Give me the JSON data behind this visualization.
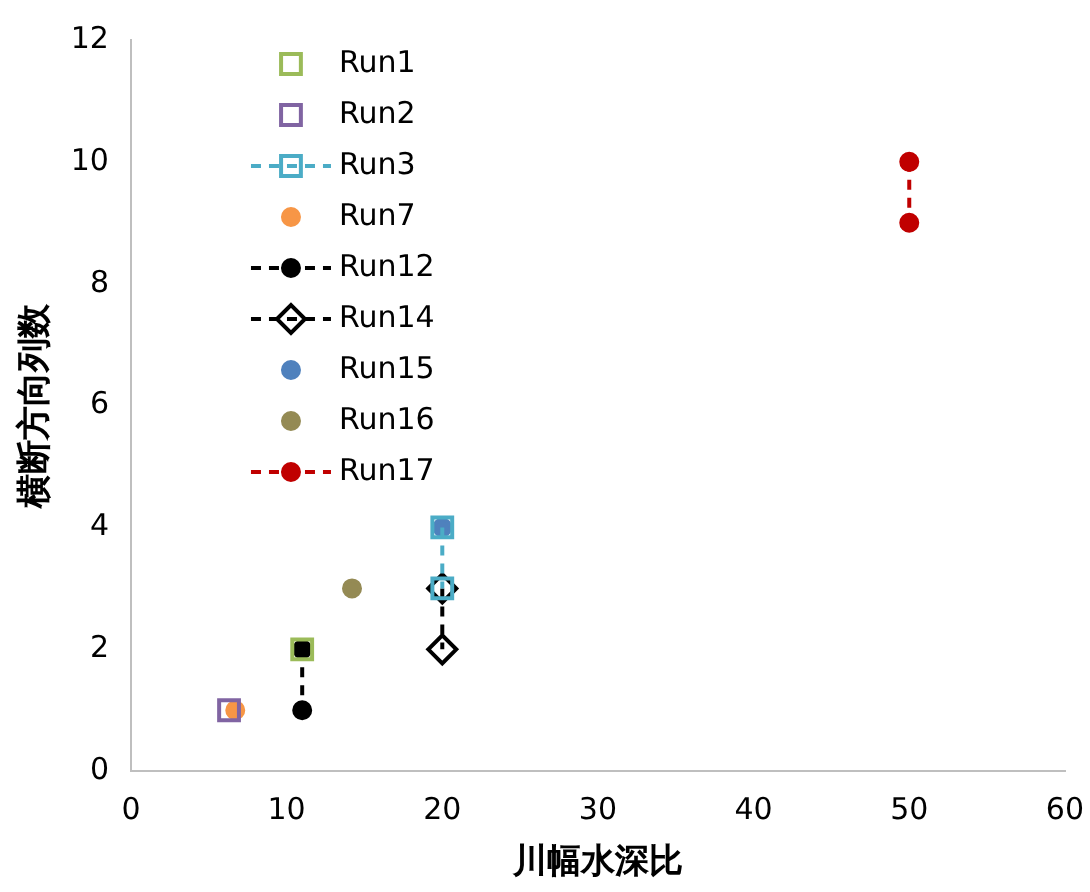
{
  "chart_data": {
    "type": "scatter",
    "xlabel": "川幅水深比",
    "ylabel": "横断方向列数",
    "xlim": [
      0,
      60
    ],
    "xticks": [
      0,
      10,
      20,
      30,
      40,
      50,
      60
    ],
    "ylim": [
      0,
      12
    ],
    "yticks": [
      0,
      2,
      4,
      6,
      8,
      10,
      12
    ],
    "grid": false,
    "legend": "top left",
    "series": [
      {
        "name": "Run1",
        "color": "#9bbb59",
        "x": [
          11
        ],
        "values": [
          2
        ],
        "marker": "square",
        "line_style": "none"
      },
      {
        "name": "Run2",
        "color": "#8064a2",
        "x": [
          6.3
        ],
        "values": [
          1
        ],
        "marker": "square",
        "line_style": "none"
      },
      {
        "name": "Run3",
        "type": "line",
        "color": "#4bacc6",
        "x": [
          20,
          20
        ],
        "values": [
          4,
          3
        ],
        "marker": "square",
        "line_style": "dashed"
      },
      {
        "name": "Run7",
        "color": "#f79646",
        "x": [
          6.7
        ],
        "values": [
          1
        ],
        "marker": "circle",
        "line_style": "none"
      },
      {
        "name": "Run12",
        "type": "line",
        "color": "#000000",
        "x": [
          11,
          11
        ],
        "values": [
          2,
          1
        ],
        "marker": "circle",
        "line_style": "dashed"
      },
      {
        "name": "Run14",
        "type": "line",
        "color": "#000000",
        "x": [
          20,
          20
        ],
        "values": [
          3,
          2
        ],
        "marker": "diamond",
        "line_style": "dashed"
      },
      {
        "name": "Run15",
        "color": "#4f81bd",
        "x": [
          20
        ],
        "values": [
          4
        ],
        "marker": "circle",
        "line_style": "none"
      },
      {
        "name": "Run16",
        "color": "#948a54",
        "x": [
          14.2
        ],
        "values": [
          3
        ],
        "marker": "circle",
        "line_style": "none"
      },
      {
        "name": "Run17",
        "type": "line",
        "color": "#c00000",
        "x": [
          50,
          50
        ],
        "values": [
          10,
          9
        ],
        "marker": "circle",
        "line_style": "dashed"
      }
    ]
  }
}
